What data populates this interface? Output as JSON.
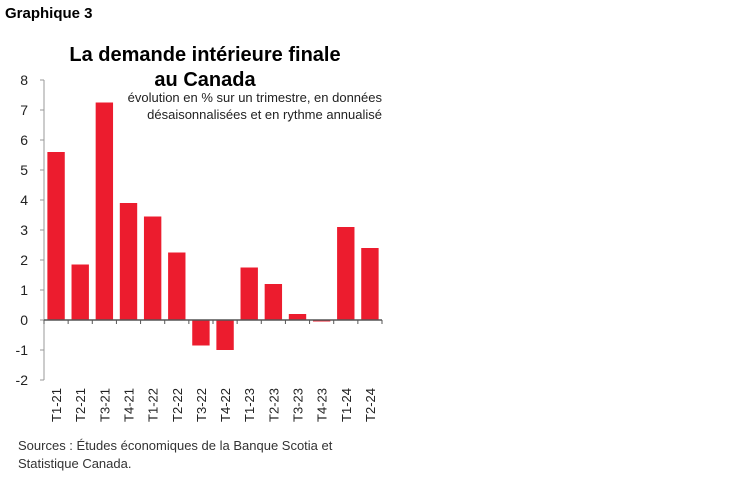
{
  "figure_label": "Graphique 3",
  "title_line1": "La demande intérieure finale",
  "title_line2": "au Canada",
  "subtitle_line1": "évolution en % sur un trimestre, en données",
  "subtitle_line2": "désaisonnalisées et en rythme annualisé",
  "source_line1": "Sources : Études économiques de la Banque Scotia et",
  "source_line2": "Statistique Canada.",
  "chart_data": {
    "type": "bar",
    "categories": [
      "T1-21",
      "T2-21",
      "T3-21",
      "T4-21",
      "T1-22",
      "T2-22",
      "T3-22",
      "T4-22",
      "T1-23",
      "T2-23",
      "T3-23",
      "T4-23",
      "T1-24",
      "T2-24"
    ],
    "values": [
      5.6,
      1.85,
      7.25,
      3.9,
      3.45,
      2.25,
      -0.85,
      -1.0,
      1.75,
      1.2,
      0.2,
      -0.05,
      3.1,
      2.4
    ],
    "ylim": [
      -2,
      8
    ],
    "yticks": [
      -2,
      -1,
      0,
      1,
      2,
      3,
      4,
      5,
      6,
      7,
      8
    ],
    "ytick_labels": [
      "-2",
      "-1",
      "0",
      "1",
      "2",
      "3",
      "4",
      "5",
      "6",
      "7",
      "8"
    ],
    "bar_color": "#EC1C2E",
    "grid": false,
    "legend": "none"
  }
}
